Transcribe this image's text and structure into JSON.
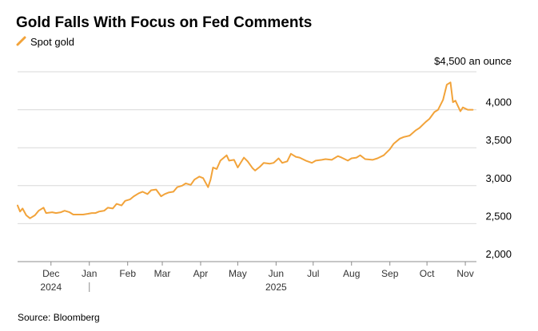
{
  "colors": {
    "line": "#F2A33A",
    "grid": "#D9D9D9",
    "text": "#000000",
    "axis_text": "#333333",
    "background": "#FFFFFF"
  },
  "chart_data": {
    "type": "line",
    "title": "Gold Falls With Focus on Fed Comments",
    "legend": {
      "position": "top-left",
      "entries": [
        "Spot gold"
      ]
    },
    "ylabel": "",
    "y_unit_label": "$4,500 an ounce",
    "ylim": [
      2000,
      4500
    ],
    "y_ticks": [
      2000,
      2500,
      3000,
      3500,
      4000
    ],
    "y_tick_labels": [
      "2,000",
      "2,500",
      "3,000",
      "3,500",
      "4,000"
    ],
    "xlim": [
      "2024-11-04",
      "2025-11-10"
    ],
    "x_ticks": [
      {
        "date": "2024-12-01",
        "label": "Dec",
        "year": "2024"
      },
      {
        "date": "2025-01-01",
        "label": "Jan",
        "year": "2025"
      },
      {
        "date": "2025-02-01",
        "label": "Feb"
      },
      {
        "date": "2025-03-01",
        "label": "Mar"
      },
      {
        "date": "2025-04-01",
        "label": "Apr"
      },
      {
        "date": "2025-05-01",
        "label": "May"
      },
      {
        "date": "2025-06-01",
        "label": "Jun"
      },
      {
        "date": "2025-07-01",
        "label": "Jul"
      },
      {
        "date": "2025-08-01",
        "label": "Aug"
      },
      {
        "date": "2025-09-01",
        "label": "Sep"
      },
      {
        "date": "2025-10-01",
        "label": "Oct"
      },
      {
        "date": "2025-11-01",
        "label": "Nov"
      }
    ],
    "year_labels": [
      {
        "label": "2024",
        "date": "2024-12-01"
      },
      {
        "label": "2025",
        "date": "2025-06-01"
      }
    ],
    "grid": true,
    "series": [
      {
        "name": "Spot gold",
        "x": [
          "2024-11-04",
          "2024-11-06",
          "2024-11-08",
          "2024-11-11",
          "2024-11-14",
          "2024-11-18",
          "2024-11-21",
          "2024-11-25",
          "2024-11-27",
          "2024-12-02",
          "2024-12-05",
          "2024-12-09",
          "2024-12-12",
          "2024-12-16",
          "2024-12-19",
          "2024-12-23",
          "2024-12-27",
          "2024-12-31",
          "2025-01-03",
          "2025-01-06",
          "2025-01-09",
          "2025-01-13",
          "2025-01-16",
          "2025-01-20",
          "2025-01-23",
          "2025-01-27",
          "2025-01-30",
          "2025-02-03",
          "2025-02-06",
          "2025-02-10",
          "2025-02-13",
          "2025-02-17",
          "2025-02-20",
          "2025-02-24",
          "2025-02-28",
          "2025-03-03",
          "2025-03-06",
          "2025-03-10",
          "2025-03-13",
          "2025-03-17",
          "2025-03-20",
          "2025-03-24",
          "2025-03-27",
          "2025-03-31",
          "2025-04-03",
          "2025-04-07",
          "2025-04-09",
          "2025-04-11",
          "2025-04-14",
          "2025-04-17",
          "2025-04-22",
          "2025-04-24",
          "2025-04-28",
          "2025-05-01",
          "2025-05-06",
          "2025-05-09",
          "2025-05-13",
          "2025-05-15",
          "2025-05-19",
          "2025-05-22",
          "2025-05-27",
          "2025-05-30",
          "2025-06-03",
          "2025-06-06",
          "2025-06-10",
          "2025-06-13",
          "2025-06-17",
          "2025-06-20",
          "2025-06-25",
          "2025-06-30",
          "2025-07-03",
          "2025-07-08",
          "2025-07-11",
          "2025-07-16",
          "2025-07-21",
          "2025-07-24",
          "2025-07-29",
          "2025-08-01",
          "2025-08-05",
          "2025-08-08",
          "2025-08-12",
          "2025-08-18",
          "2025-08-22",
          "2025-08-27",
          "2025-09-01",
          "2025-09-04",
          "2025-09-09",
          "2025-09-12",
          "2025-09-17",
          "2025-09-22",
          "2025-09-25",
          "2025-09-30",
          "2025-10-03",
          "2025-10-07",
          "2025-10-10",
          "2025-10-14",
          "2025-10-17",
          "2025-10-20",
          "2025-10-22",
          "2025-10-24",
          "2025-10-28",
          "2025-10-30",
          "2025-11-03",
          "2025-11-07"
        ],
        "values": [
          2740,
          2660,
          2700,
          2610,
          2570,
          2610,
          2670,
          2710,
          2640,
          2650,
          2640,
          2650,
          2670,
          2650,
          2620,
          2620,
          2620,
          2630,
          2640,
          2640,
          2660,
          2670,
          2710,
          2700,
          2760,
          2740,
          2800,
          2820,
          2860,
          2900,
          2920,
          2890,
          2940,
          2950,
          2860,
          2890,
          2910,
          2920,
          2980,
          3000,
          3030,
          3010,
          3080,
          3120,
          3100,
          2980,
          3080,
          3240,
          3220,
          3330,
          3400,
          3330,
          3340,
          3240,
          3370,
          3320,
          3230,
          3200,
          3250,
          3300,
          3290,
          3300,
          3360,
          3300,
          3320,
          3420,
          3380,
          3370,
          3330,
          3300,
          3330,
          3340,
          3350,
          3340,
          3390,
          3370,
          3330,
          3360,
          3370,
          3400,
          3350,
          3340,
          3360,
          3400,
          3480,
          3550,
          3620,
          3640,
          3660,
          3730,
          3760,
          3840,
          3880,
          3970,
          4000,
          4130,
          4330,
          4360,
          4100,
          4120,
          3980,
          4030,
          4000,
          4000
        ]
      }
    ],
    "source": "Source: Bloomberg"
  }
}
